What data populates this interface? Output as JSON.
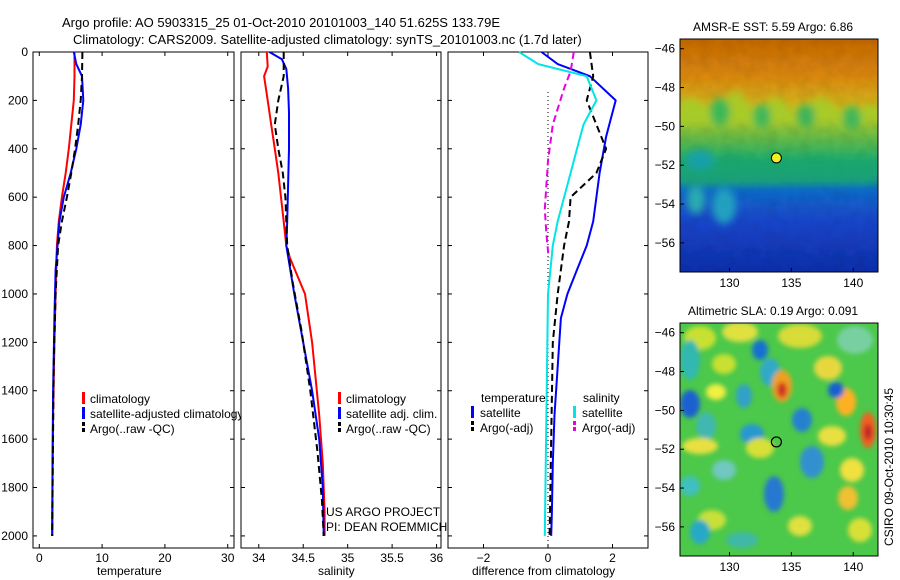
{
  "header": {
    "line1": "Argo profile: AO 5903315_25 01-Oct-2010 20101003_140 51.625S 133.79E",
    "line2": "Climatology: CARS2009. Satellite-adjusted climatology: synTS_20101003.nc (1.7d later)"
  },
  "side_label": "CSIRO 09-Oct-2010 10:30:45",
  "project_label": {
    "line1": "US ARGO PROJECT",
    "line2": "PI: DEAN ROEMMICH"
  },
  "colors": {
    "climatology": "#ff0000",
    "satellite": "#0000ff",
    "argo": "#000000",
    "sal_satellite": "#00e5e5",
    "sal_argo": "#e600e6",
    "marker": "#f0f020"
  },
  "chart_data": [
    {
      "id": "temperature",
      "type": "line",
      "xlabel": "temperature",
      "ylabel": "",
      "xlim": [
        -1,
        31
      ],
      "ylim": [
        2050,
        0
      ],
      "xticks": [
        0,
        10,
        20,
        30
      ],
      "yticks": [
        0,
        200,
        400,
        600,
        800,
        1000,
        1200,
        1400,
        1600,
        1800,
        2000
      ],
      "legend": {
        "placement": "lower-right",
        "entries": [
          "climatology",
          "satellite-adjusted climatology",
          "Argo(..raw -QC)"
        ]
      },
      "series": [
        {
          "name": "climatology",
          "color": "#ff0000",
          "dash": "",
          "x": [
            5.6,
            5.6,
            5.5,
            5.1,
            4.7,
            4.2,
            3.6,
            3.1,
            2.8,
            2.6,
            2.4,
            2.2,
            2.1,
            2.05
          ],
          "y": [
            0,
            100,
            200,
            300,
            400,
            500,
            600,
            700,
            800,
            1000,
            1200,
            1500,
            1800,
            2000
          ]
        },
        {
          "name": "satellite-adjusted climatology",
          "color": "#0000ff",
          "dash": "",
          "x": [
            5.5,
            5.9,
            6.8,
            7.0,
            6.6,
            5.9,
            5.0,
            3.9,
            3.2,
            2.6,
            2.4,
            2.2,
            2.1,
            2.05
          ],
          "y": [
            0,
            50,
            100,
            200,
            300,
            400,
            500,
            600,
            700,
            900,
            1100,
            1400,
            1700,
            2000
          ]
        },
        {
          "name": "Argo(..raw -QC)",
          "color": "#000000",
          "dash": "7,4",
          "x": [
            6.86,
            6.8,
            6.6,
            6.2,
            5.7,
            5.1,
            4.4,
            3.6,
            3.0,
            2.6,
            2.3,
            2.15,
            2.05
          ],
          "y": [
            0,
            100,
            200,
            300,
            400,
            500,
            600,
            700,
            800,
            1000,
            1300,
            1700,
            2000
          ]
        }
      ]
    },
    {
      "id": "salinity",
      "type": "line",
      "xlabel": "salinity",
      "ylabel": "",
      "xlim": [
        33.8,
        36.05
      ],
      "ylim": [
        2050,
        0
      ],
      "xticks": [
        34,
        34.5,
        35,
        35.5,
        36
      ],
      "xticklabels": [
        "34",
        "34.5",
        "35",
        "35.5",
        "36"
      ],
      "legend": {
        "placement": "lower-right",
        "entries": [
          "climatology",
          "satellite adj. clim.",
          "Argo(..raw -QC)"
        ]
      },
      "series": [
        {
          "name": "climatology",
          "color": "#ff0000",
          "dash": "",
          "x": [
            34.09,
            34.1,
            34.06,
            34.1,
            34.14,
            34.18,
            34.22,
            34.25,
            34.28,
            34.31,
            34.35,
            34.52,
            34.6,
            34.68,
            34.72,
            34.74,
            34.74
          ],
          "y": [
            0,
            60,
            100,
            200,
            300,
            400,
            500,
            600,
            700,
            800,
            850,
            1000,
            1200,
            1500,
            1700,
            1900,
            2000
          ]
        },
        {
          "name": "satellite adj. clim.",
          "color": "#0000ff",
          "dash": "",
          "x": [
            34.12,
            34.26,
            34.31,
            34.33,
            34.34,
            34.34,
            34.33,
            34.32,
            34.31,
            34.4,
            34.5,
            34.6,
            34.68,
            34.72,
            34.73
          ],
          "y": [
            0,
            30,
            70,
            150,
            250,
            400,
            550,
            700,
            800,
            1000,
            1200,
            1400,
            1600,
            1800,
            2000
          ]
        },
        {
          "name": "Argo(..raw -QC)",
          "color": "#000000",
          "dash": "7,4",
          "x": [
            34.28,
            34.28,
            34.22,
            34.18,
            34.22,
            34.27,
            34.3,
            34.31,
            34.32,
            34.38,
            34.48,
            34.58,
            34.66,
            34.71,
            34.73
          ],
          "y": [
            0,
            100,
            200,
            300,
            400,
            500,
            600,
            700,
            800,
            950,
            1150,
            1400,
            1650,
            1850,
            2000
          ]
        }
      ]
    },
    {
      "id": "difference",
      "type": "line",
      "xlabel": "difference from climatology",
      "ylabel": "",
      "xlim": [
        -3.1,
        3.1
      ],
      "ylim": [
        2050,
        0
      ],
      "xticks": [
        -2,
        0,
        2
      ],
      "xticklabels": [
        "−2",
        "0",
        "2"
      ],
      "zero_line": true,
      "legend": {
        "placement": "lower-right",
        "groups": [
          {
            "title": "temperature",
            "entries": [
              "satellite",
              "Argo(-adj)"
            ]
          },
          {
            "title": "salinity",
            "entries": [
              "satellite",
              "Argo(-adj)"
            ]
          }
        ]
      },
      "series": [
        {
          "name": "temperature satellite",
          "color": "#0000ff",
          "dash": "",
          "x": [
            -0.2,
            0.3,
            1.3,
            2.1,
            1.8,
            1.6,
            1.5,
            1.4,
            1.2,
            0.9,
            0.6,
            0.4,
            0.3,
            0.2,
            0.15,
            0.12,
            0.1
          ],
          "y": [
            0,
            50,
            100,
            200,
            350,
            500,
            600,
            700,
            800,
            900,
            1000,
            1100,
            1300,
            1500,
            1700,
            1900,
            2000
          ]
        },
        {
          "name": "temperature Argo(-adj)",
          "color": "#000000",
          "dash": "7,4",
          "x": [
            1.3,
            1.4,
            1.2,
            1.5,
            1.8,
            1.5,
            0.7,
            0.65,
            0.5,
            0.3,
            0.15,
            0.05
          ],
          "y": [
            0,
            100,
            200,
            300,
            400,
            500,
            600,
            700,
            800,
            1000,
            1200,
            2000
          ]
        },
        {
          "name": "salinity satellite",
          "color": "#00e5e5",
          "dash": "",
          "x": [
            -0.9,
            -0.3,
            1.2,
            1.5,
            1.1,
            0.9,
            0.7,
            0.5,
            0.3,
            0.15,
            0.0,
            -0.05,
            -0.1
          ],
          "y": [
            0,
            50,
            100,
            200,
            300,
            400,
            500,
            600,
            700,
            800,
            1000,
            1500,
            2000
          ]
        },
        {
          "name": "salinity Argo(-adj)",
          "color": "#e600e6",
          "dash": "7,4",
          "x": [
            0.8,
            0.7,
            0.5,
            0.15,
            0.0,
            -0.05,
            -0.1,
            -0.05,
            0.02
          ],
          "y": [
            0,
            80,
            150,
            300,
            450,
            550,
            650,
            750,
            850
          ]
        }
      ]
    },
    {
      "id": "sst-map",
      "type": "heatmap",
      "title": "AMSR-E SST: 5.59 Argo: 6.86",
      "xlim": [
        126,
        142
      ],
      "ylim": [
        -57.5,
        -45.5
      ],
      "xticks": [
        130,
        135,
        140
      ],
      "yticks": [
        -46,
        -48,
        -50,
        -52,
        -54,
        -56
      ],
      "marker": {
        "lon": 133.79,
        "lat": -51.625,
        "filled": true
      }
    },
    {
      "id": "sla-map",
      "type": "heatmap",
      "title": "Altimetric SLA: 0.19 Argo: 0.091",
      "xlim": [
        126,
        142
      ],
      "ylim": [
        -57.5,
        -45.5
      ],
      "xticks": [
        130,
        135,
        140
      ],
      "yticks": [
        -46,
        -48,
        -50,
        -52,
        -54,
        -56
      ],
      "marker": {
        "lon": 133.79,
        "lat": -51.625,
        "filled": false
      }
    }
  ]
}
